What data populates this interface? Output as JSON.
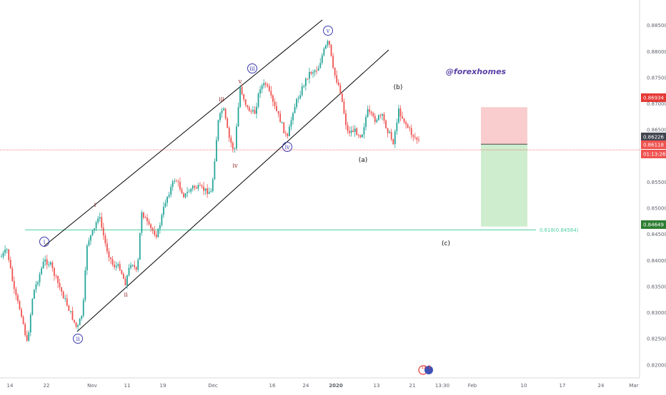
{
  "chart_data": {
    "type": "candlestick",
    "symbol_watermark": "@forexhomes",
    "y_axis": {
      "min": 0.8182,
      "max": 0.8885,
      "ticks": [
        "0.88500",
        "0.88000",
        "0.87500",
        "0.87000",
        "0.86500",
        "0.86000",
        "0.85500",
        "0.85000",
        "0.84500",
        "0.84000",
        "0.83500",
        "0.83000",
        "0.82500",
        "0.82000"
      ],
      "tick_values": [
        0.885,
        0.88,
        0.875,
        0.87,
        0.865,
        0.86,
        0.855,
        0.85,
        0.845,
        0.84,
        0.835,
        0.83,
        0.825,
        0.82
      ]
    },
    "x_axis": {
      "ticks": [
        "14",
        "22",
        "Nov",
        "11",
        "19",
        "Dec",
        "16",
        "24",
        "2020",
        "13",
        "21",
        "13:30",
        "Feb",
        "10",
        "17",
        "24",
        "Mar"
      ],
      "bold_ticks": [
        "2020"
      ]
    },
    "price_badges": [
      {
        "label": "0.86934",
        "value": 0.86934,
        "color": "#e53935"
      },
      {
        "label": "0.86226",
        "value": 0.86226,
        "color": "#434651"
      },
      {
        "label": "0.86118",
        "value": 0.86118,
        "color": "#ef5350"
      },
      {
        "label": "01:13:26",
        "value": 0.85958,
        "color": "#ef5350"
      },
      {
        "label": "0.84649",
        "value": 0.84649,
        "color": "#2e7d32"
      }
    ],
    "current_price": 0.86118,
    "fib_level": {
      "label": "0.618(0.84584)",
      "value": 0.84584,
      "color": "#4dd0a0"
    },
    "position": {
      "entry": 0.86226,
      "stop": 0.86934,
      "target": 0.84649
    },
    "wave_labels": [
      {
        "text": "i",
        "style": "circled"
      },
      {
        "text": "ii",
        "style": "circled"
      },
      {
        "text": "iii",
        "style": "circled"
      },
      {
        "text": "iv",
        "style": "circled"
      },
      {
        "text": "v",
        "style": "circled"
      },
      {
        "text": "i",
        "style": "plain"
      },
      {
        "text": "ii",
        "style": "plain"
      },
      {
        "text": "iii",
        "style": "plain"
      },
      {
        "text": "iv",
        "style": "plain"
      },
      {
        "text": "v",
        "style": "plain"
      },
      {
        "text": "(a)",
        "style": "paren"
      },
      {
        "text": "(b)",
        "style": "paren"
      },
      {
        "text": "(c)",
        "style": "paren"
      }
    ],
    "event_badge_text": "12 3",
    "up_color": "#26a69a",
    "down_color": "#ef5350",
    "trend_color": "#000000"
  }
}
